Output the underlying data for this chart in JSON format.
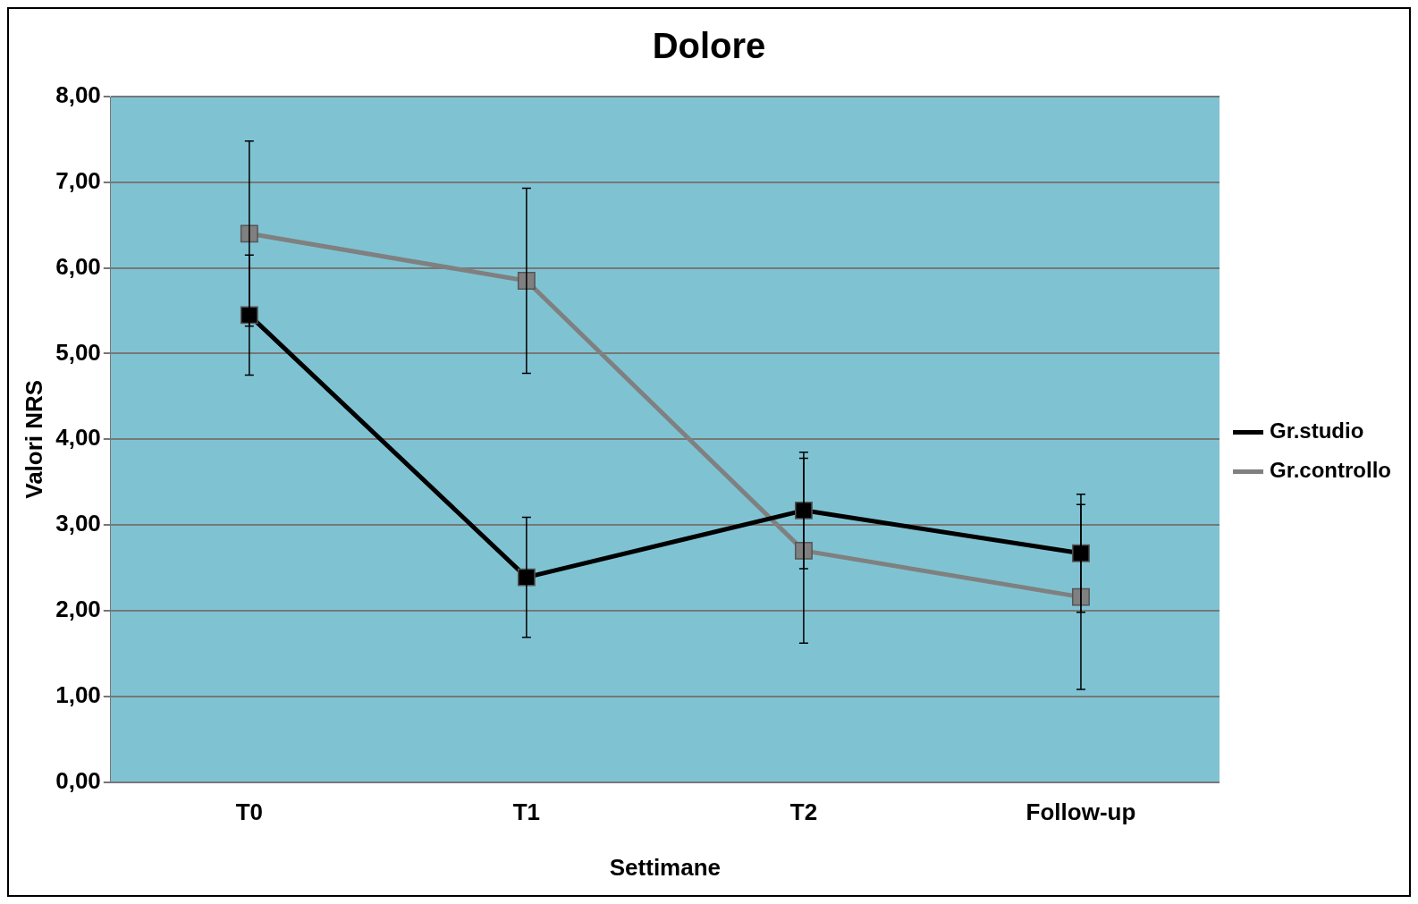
{
  "chart_data": {
    "type": "line",
    "title": "Dolore",
    "xlabel": "Settimane",
    "ylabel": "Valori NRS",
    "categories": [
      "T0",
      "T1",
      "T2",
      "Follow-up"
    ],
    "series": [
      {
        "name": "Gr.studio",
        "color": "#000000",
        "values": [
          5.45,
          2.39,
          3.17,
          2.67
        ],
        "errors": [
          0.7,
          0.7,
          0.68,
          0.69
        ]
      },
      {
        "name": "Gr.controllo",
        "color": "#808080",
        "values": [
          6.4,
          5.85,
          2.7,
          2.16
        ],
        "errors": [
          1.08,
          1.08,
          1.08,
          1.08
        ]
      }
    ],
    "ylim": [
      0,
      8
    ],
    "yticks": [
      {
        "value": 0,
        "label": "0,00"
      },
      {
        "value": 1,
        "label": "1,00"
      },
      {
        "value": 2,
        "label": "2,00"
      },
      {
        "value": 3,
        "label": "3,00"
      },
      {
        "value": 4,
        "label": "4,00"
      },
      {
        "value": 5,
        "label": "5,00"
      },
      {
        "value": 6,
        "label": "6,00"
      },
      {
        "value": 7,
        "label": "7,00"
      },
      {
        "value": 8,
        "label": "8,00"
      }
    ],
    "grid": "y",
    "legend": "right",
    "marker": "square",
    "line_style": "solid"
  }
}
